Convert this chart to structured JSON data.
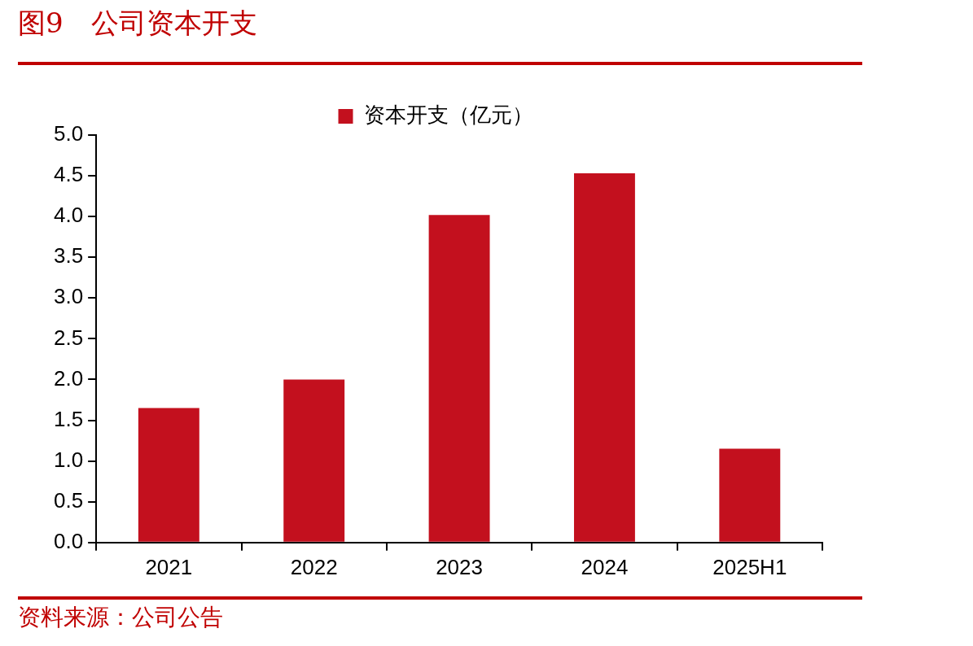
{
  "chart_data": {
    "type": "bar",
    "title": "图9　公司资本开支",
    "categories": [
      "2021",
      "2022",
      "2023",
      "2024",
      "2025H1"
    ],
    "series": [
      {
        "name": "资本开支（亿元）",
        "color": "#c3101e",
        "values": [
          1.65,
          2.0,
          4.02,
          4.53,
          1.15
        ]
      }
    ],
    "ylim": [
      0,
      5
    ],
    "yticks": [
      {
        "value": 0,
        "label": "0.0"
      },
      {
        "value": 0.5,
        "label": "0.5"
      },
      {
        "value": 1,
        "label": "1.0"
      },
      {
        "value": 1.5,
        "label": "1.5"
      },
      {
        "value": 2,
        "label": "2.0"
      },
      {
        "value": 2.5,
        "label": "2.5"
      },
      {
        "value": 3,
        "label": "3.0"
      },
      {
        "value": 3.5,
        "label": "3.5"
      },
      {
        "value": 4,
        "label": "4.0"
      },
      {
        "value": 4.5,
        "label": "4.5"
      },
      {
        "value": 5,
        "label": "5.0"
      }
    ],
    "legend": "top",
    "annotations": [
      "资料来源：公司公告"
    ]
  }
}
